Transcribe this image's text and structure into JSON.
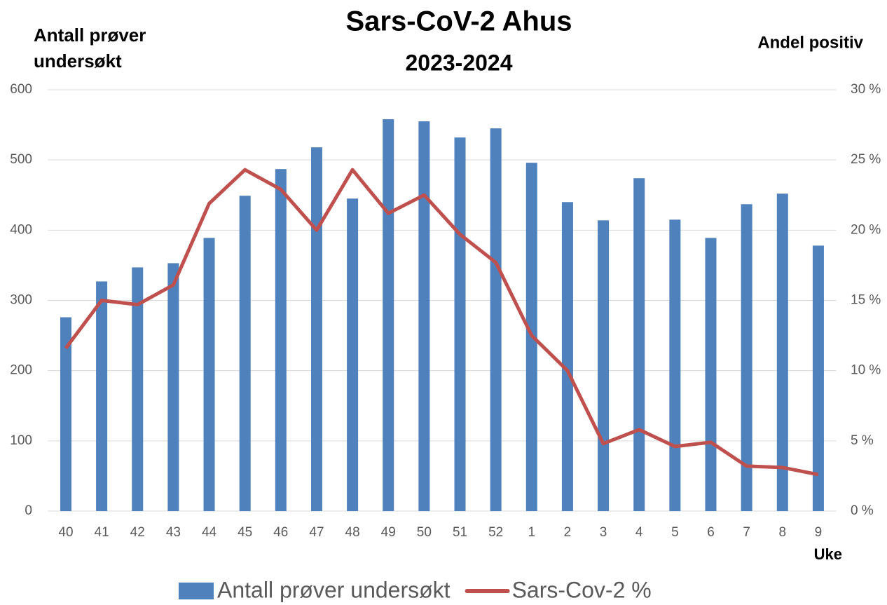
{
  "chart_data": {
    "type": "bar_line",
    "title": "Sars-CoV-2 Ahus",
    "subtitle": "2023-2024",
    "y_label": "Antall prøver undersøkt",
    "y2_label": "Andel positiv",
    "x_label": "Uke",
    "categories": [
      "40",
      "41",
      "42",
      "43",
      "44",
      "45",
      "46",
      "47",
      "48",
      "49",
      "50",
      "51",
      "52",
      "1",
      "2",
      "3",
      "4",
      "5",
      "6",
      "7",
      "8",
      "9"
    ],
    "series": [
      {
        "name": "Antall prøver undersøkt",
        "type": "bar",
        "color": "#4f81bd",
        "values": [
          276,
          327,
          347,
          353,
          389,
          449,
          487,
          518,
          445,
          558,
          555,
          532,
          545,
          496,
          440,
          414,
          474,
          415,
          389,
          437,
          452,
          378
        ]
      },
      {
        "name": "Sars-Cov-2 %",
        "type": "line",
        "color": "#c0504d",
        "axis": "y2",
        "values": [
          11.6,
          15.0,
          14.7,
          16.1,
          21.9,
          24.3,
          22.9,
          20.0,
          24.3,
          21.2,
          22.5,
          19.7,
          17.7,
          12.5,
          10.0,
          4.8,
          5.8,
          4.6,
          4.9,
          3.2,
          3.1,
          2.6
        ]
      }
    ],
    "ylim": [
      0,
      600
    ],
    "yticks": [
      0,
      100,
      200,
      300,
      400,
      500,
      600
    ],
    "y2lim": [
      0,
      30
    ],
    "y2ticks": [
      {
        "value": 0,
        "label": "0 %"
      },
      {
        "value": 5,
        "label": "5 %"
      },
      {
        "value": 10,
        "label": "10 %"
      },
      {
        "value": 15,
        "label": "15 %"
      },
      {
        "value": 20,
        "label": "20 %"
      },
      {
        "value": 25,
        "label": "25 %"
      },
      {
        "value": 30,
        "label": "30 %"
      }
    ],
    "grid": true,
    "legend": "bottom"
  }
}
